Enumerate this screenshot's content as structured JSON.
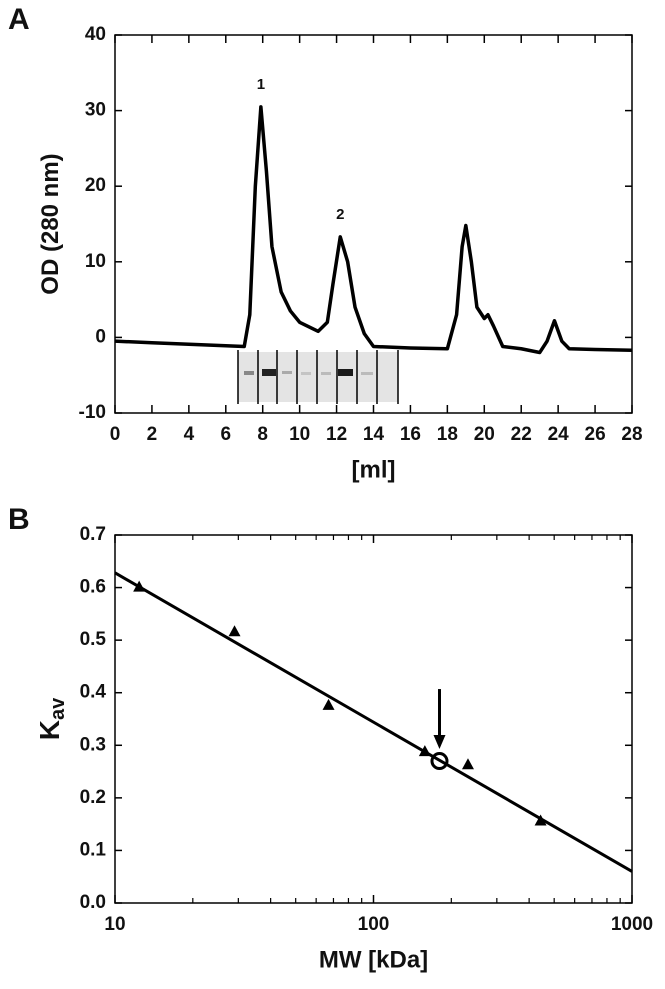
{
  "chart_data": [
    {
      "type": "line",
      "panel": "A",
      "xlabel": "[ml]",
      "ylabel": "OD (280 nm)",
      "x": [
        0,
        2,
        4,
        6,
        7,
        7.3,
        7.6,
        7.9,
        8.2,
        8.5,
        9,
        9.5,
        10,
        11,
        11.5,
        11.8,
        12.2,
        12.6,
        13,
        13.5,
        14,
        16,
        18,
        18.5,
        18.8,
        19,
        19.3,
        19.6,
        20,
        20.2,
        20.5,
        21,
        22,
        23,
        23.4,
        23.8,
        24.2,
        24.6,
        26,
        28
      ],
      "series": [
        {
          "color": "#000000",
          "values": [
            -0.5,
            -0.7,
            -0.9,
            -1.1,
            -1.2,
            3,
            20,
            30.5,
            22,
            12,
            6,
            3.5,
            2,
            0.8,
            2,
            7,
            13.3,
            10,
            4,
            0.5,
            -1.2,
            -1.4,
            -1.5,
            3,
            12,
            14.8,
            10,
            4,
            2.5,
            3,
            1.5,
            -1.2,
            -1.5,
            -2,
            -0.5,
            2.2,
            -0.5,
            -1.5,
            -1.6,
            -1.7
          ]
        }
      ],
      "annotations": [
        "1",
        "2"
      ],
      "xlim": [
        0,
        28
      ],
      "xticks": [
        0,
        2,
        4,
        6,
        8,
        10,
        12,
        14,
        16,
        18,
        20,
        22,
        24,
        26,
        28
      ],
      "ylim": [
        -10,
        40
      ],
      "yticks": [
        -10,
        0,
        10,
        20,
        30,
        40
      ]
    },
    {
      "type": "scatter",
      "panel": "B",
      "xlabel": "MW [kDa]",
      "ylabel": "K",
      "ylabel_sub": "av",
      "xscale": "log",
      "series": [
        {
          "marker": "triangle",
          "color": "#000000",
          "x": [
            12.4,
            29,
            67,
            158,
            232,
            443
          ],
          "values": [
            0.6,
            0.515,
            0.375,
            0.287,
            0.262,
            0.155
          ]
        },
        {
          "marker": "open-circle",
          "color": "#000000",
          "x": [
            180
          ],
          "values": [
            0.27
          ]
        },
        {
          "marker": "line",
          "color": "#000000",
          "x": [
            10,
            1000
          ],
          "values": [
            0.628,
            0.06
          ]
        }
      ],
      "xlim": [
        10,
        1000
      ],
      "xticks": [
        10,
        100,
        1000
      ],
      "ylim": [
        0,
        0.7
      ],
      "yticks": [
        {
          "value": 0,
          "label": "0.0"
        },
        0.1,
        0.2,
        0.3,
        0.4,
        0.5,
        0.6,
        0.7
      ]
    }
  ]
}
